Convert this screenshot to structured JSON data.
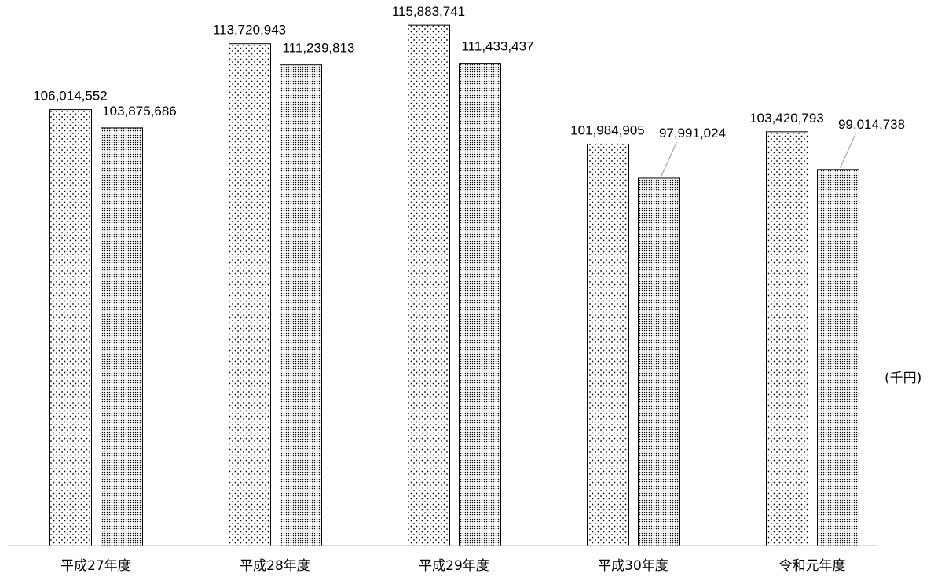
{
  "chart_data": {
    "type": "bar",
    "categories": [
      "平成27年度",
      "平成28年度",
      "平成29年度",
      "平成30年度",
      "令和元年度"
    ],
    "series": [
      {
        "pattern": "sparse-dots",
        "values": [
          106014552,
          113720943,
          115883741,
          101984905,
          103420793
        ],
        "labels": [
          "106,014,552",
          "113,720,943",
          "115,883,741",
          "101,984,905",
          "103,420,793"
        ]
      },
      {
        "pattern": "dense-dots",
        "values": [
          103875686,
          111239813,
          111433437,
          97991024,
          99014738
        ],
        "labels": [
          "103,875,686",
          "111,239,813",
          "111,433,437",
          "97,991,024",
          "99,014,738"
        ]
      }
    ],
    "unit_label": "(千円)",
    "ylim": [
      55000000,
      117000000
    ],
    "grid": false,
    "legend": "none",
    "colors": {
      "bar_outline": "#000000",
      "dot": "#000000",
      "baseline": "#bfbfbf",
      "leader_line": "#a6a6a6"
    }
  }
}
